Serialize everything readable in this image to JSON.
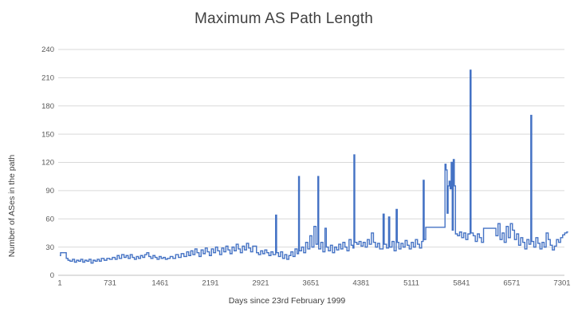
{
  "chart_data": {
    "type": "line",
    "title": "Maximum AS Path Length",
    "xlabel": "Days since 23rd February 1999",
    "ylabel": "Number of ASes in the path",
    "legend": "none",
    "grid": "horizontal",
    "interpolation": "step-after",
    "x_ticks": [
      1,
      731,
      1461,
      2191,
      2921,
      3651,
      4381,
      5111,
      5841,
      6571,
      7301
    ],
    "y_ticks": [
      0,
      30,
      60,
      90,
      120,
      150,
      180,
      210,
      240
    ],
    "xlim": [
      1,
      7390
    ],
    "ylim": [
      0,
      240
    ],
    "colors": {
      "line": "#4472C4",
      "gridline": "#D9D9D9",
      "axis_line": "#BFBFBF",
      "tick_text": "#595959",
      "title_text": "#404040"
    },
    "series": [
      {
        "name": "Maximum AS path length",
        "points": [
          [
            1,
            21
          ],
          [
            12,
            24
          ],
          [
            95,
            18
          ],
          [
            120,
            16
          ],
          [
            150,
            15
          ],
          [
            185,
            17
          ],
          [
            215,
            14
          ],
          [
            245,
            16
          ],
          [
            275,
            15
          ],
          [
            305,
            17
          ],
          [
            335,
            14
          ],
          [
            365,
            16
          ],
          [
            395,
            15
          ],
          [
            425,
            17
          ],
          [
            455,
            13
          ],
          [
            485,
            16
          ],
          [
            515,
            15
          ],
          [
            545,
            17
          ],
          [
            575,
            15
          ],
          [
            605,
            18
          ],
          [
            645,
            16
          ],
          [
            685,
            18
          ],
          [
            725,
            17
          ],
          [
            765,
            19
          ],
          [
            805,
            17
          ],
          [
            835,
            21
          ],
          [
            865,
            18
          ],
          [
            900,
            22
          ],
          [
            935,
            19
          ],
          [
            965,
            21
          ],
          [
            995,
            18
          ],
          [
            1025,
            22
          ],
          [
            1055,
            19
          ],
          [
            1085,
            17
          ],
          [
            1115,
            20
          ],
          [
            1145,
            18
          ],
          [
            1175,
            21
          ],
          [
            1205,
            19
          ],
          [
            1235,
            22
          ],
          [
            1265,
            24
          ],
          [
            1295,
            20
          ],
          [
            1325,
            18
          ],
          [
            1355,
            21
          ],
          [
            1385,
            19
          ],
          [
            1415,
            17
          ],
          [
            1445,
            20
          ],
          [
            1475,
            18
          ],
          [
            1505,
            19
          ],
          [
            1535,
            17
          ],
          [
            1565,
            18
          ],
          [
            1605,
            20
          ],
          [
            1645,
            18
          ],
          [
            1685,
            22
          ],
          [
            1725,
            19
          ],
          [
            1765,
            23
          ],
          [
            1805,
            20
          ],
          [
            1845,
            25
          ],
          [
            1875,
            21
          ],
          [
            1905,
            26
          ],
          [
            1935,
            22
          ],
          [
            1965,
            28
          ],
          [
            1995,
            24
          ],
          [
            2025,
            20
          ],
          [
            2055,
            27
          ],
          [
            2085,
            23
          ],
          [
            2115,
            29
          ],
          [
            2145,
            25
          ],
          [
            2175,
            21
          ],
          [
            2205,
            28
          ],
          [
            2235,
            24
          ],
          [
            2265,
            30
          ],
          [
            2295,
            26
          ],
          [
            2325,
            22
          ],
          [
            2355,
            29
          ],
          [
            2385,
            25
          ],
          [
            2415,
            31
          ],
          [
            2445,
            27
          ],
          [
            2475,
            23
          ],
          [
            2505,
            30
          ],
          [
            2535,
            26
          ],
          [
            2565,
            33
          ],
          [
            2595,
            28
          ],
          [
            2625,
            24
          ],
          [
            2655,
            31
          ],
          [
            2685,
            27
          ],
          [
            2715,
            34
          ],
          [
            2745,
            29
          ],
          [
            2775,
            25
          ],
          [
            2805,
            31
          ],
          [
            2860,
            24
          ],
          [
            2890,
            22
          ],
          [
            2920,
            26
          ],
          [
            2950,
            23
          ],
          [
            2980,
            27
          ],
          [
            3010,
            24
          ],
          [
            3040,
            21
          ],
          [
            3070,
            25
          ],
          [
            3100,
            22
          ],
          [
            3138,
            64
          ],
          [
            3152,
            24
          ],
          [
            3180,
            20
          ],
          [
            3210,
            25
          ],
          [
            3240,
            18
          ],
          [
            3270,
            22
          ],
          [
            3300,
            17
          ],
          [
            3330,
            21
          ],
          [
            3360,
            25
          ],
          [
            3390,
            20
          ],
          [
            3420,
            28
          ],
          [
            3450,
            23
          ],
          [
            3472,
            105
          ],
          [
            3484,
            26
          ],
          [
            3515,
            30
          ],
          [
            3545,
            24
          ],
          [
            3575,
            35
          ],
          [
            3605,
            28
          ],
          [
            3635,
            42
          ],
          [
            3665,
            30
          ],
          [
            3695,
            52
          ],
          [
            3725,
            33
          ],
          [
            3752,
            105
          ],
          [
            3764,
            28
          ],
          [
            3795,
            35
          ],
          [
            3825,
            25
          ],
          [
            3855,
            50
          ],
          [
            3875,
            30
          ],
          [
            3905,
            26
          ],
          [
            3935,
            32
          ],
          [
            3965,
            24
          ],
          [
            3995,
            30
          ],
          [
            4025,
            27
          ],
          [
            4055,
            33
          ],
          [
            4085,
            28
          ],
          [
            4115,
            35
          ],
          [
            4145,
            30
          ],
          [
            4175,
            26
          ],
          [
            4205,
            38
          ],
          [
            4235,
            32
          ],
          [
            4262,
            29
          ],
          [
            4276,
            128
          ],
          [
            4288,
            35
          ],
          [
            4320,
            33
          ],
          [
            4350,
            36
          ],
          [
            4380,
            31
          ],
          [
            4410,
            35
          ],
          [
            4440,
            30
          ],
          [
            4470,
            38
          ],
          [
            4500,
            33
          ],
          [
            4530,
            45
          ],
          [
            4560,
            35
          ],
          [
            4590,
            30
          ],
          [
            4620,
            34
          ],
          [
            4650,
            28
          ],
          [
            4700,
            65
          ],
          [
            4716,
            33
          ],
          [
            4750,
            29
          ],
          [
            4780,
            62
          ],
          [
            4796,
            30
          ],
          [
            4830,
            36
          ],
          [
            4860,
            26
          ],
          [
            4890,
            70
          ],
          [
            4906,
            35
          ],
          [
            4930,
            28
          ],
          [
            4960,
            34
          ],
          [
            4990,
            30
          ],
          [
            5020,
            37
          ],
          [
            5050,
            32
          ],
          [
            5080,
            28
          ],
          [
            5110,
            35
          ],
          [
            5140,
            30
          ],
          [
            5170,
            38
          ],
          [
            5200,
            33
          ],
          [
            5230,
            29
          ],
          [
            5260,
            36
          ],
          [
            5283,
            101
          ],
          [
            5297,
            38
          ],
          [
            5320,
            51
          ],
          [
            5600,
            118
          ],
          [
            5615,
            112
          ],
          [
            5630,
            66
          ],
          [
            5645,
            95
          ],
          [
            5660,
            100
          ],
          [
            5675,
            92
          ],
          [
            5690,
            120
          ],
          [
            5705,
            48
          ],
          [
            5720,
            123
          ],
          [
            5735,
            95
          ],
          [
            5752,
            44
          ],
          [
            5782,
            42
          ],
          [
            5812,
            46
          ],
          [
            5842,
            40
          ],
          [
            5872,
            45
          ],
          [
            5902,
            38
          ],
          [
            5932,
            44
          ],
          [
            5965,
            218
          ],
          [
            5978,
            45
          ],
          [
            6010,
            42
          ],
          [
            6040,
            36
          ],
          [
            6070,
            44
          ],
          [
            6100,
            40
          ],
          [
            6130,
            35
          ],
          [
            6160,
            50
          ],
          [
            6340,
            42
          ],
          [
            6370,
            55
          ],
          [
            6400,
            38
          ],
          [
            6430,
            45
          ],
          [
            6460,
            35
          ],
          [
            6490,
            52
          ],
          [
            6520,
            40
          ],
          [
            6550,
            55
          ],
          [
            6580,
            48
          ],
          [
            6610,
            38
          ],
          [
            6640,
            44
          ],
          [
            6670,
            32
          ],
          [
            6700,
            40
          ],
          [
            6730,
            35
          ],
          [
            6760,
            28
          ],
          [
            6790,
            38
          ],
          [
            6820,
            33
          ],
          [
            6847,
            170
          ],
          [
            6860,
            36
          ],
          [
            6890,
            30
          ],
          [
            6920,
            40
          ],
          [
            6950,
            34
          ],
          [
            6980,
            28
          ],
          [
            7010,
            35
          ],
          [
            7040,
            30
          ],
          [
            7070,
            45
          ],
          [
            7100,
            38
          ],
          [
            7130,
            32
          ],
          [
            7160,
            27
          ],
          [
            7190,
            31
          ],
          [
            7220,
            38
          ],
          [
            7250,
            35
          ],
          [
            7280,
            40
          ],
          [
            7310,
            43
          ],
          [
            7340,
            45
          ],
          [
            7370,
            46
          ],
          [
            7390,
            46
          ]
        ]
      }
    ]
  }
}
